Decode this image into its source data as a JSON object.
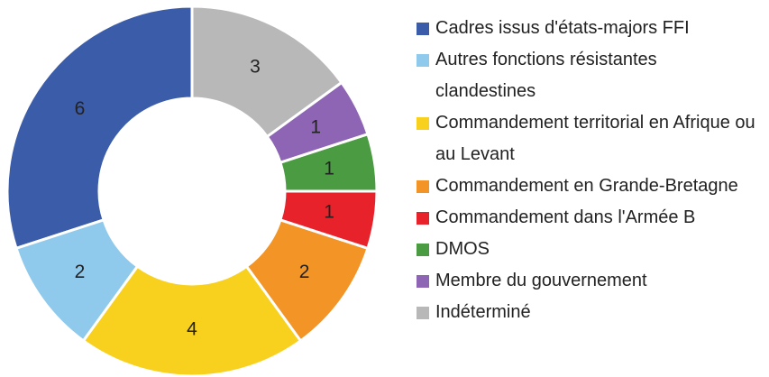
{
  "chart_data": {
    "type": "donut",
    "categories": [
      "Cadres issus d'états-majors FFI",
      "Autres fonctions résistantes clandestines",
      "Commandement territorial en Afrique ou au Levant",
      "Commandement en Grande-Bretagne",
      "Commandement dans l'Armée B",
      "DMOS",
      "Membre du gouvernement",
      "Indéterminé"
    ],
    "values": [
      6,
      2,
      4,
      2,
      1,
      1,
      1,
      3
    ],
    "colors": [
      "#3b5ca9",
      "#8fc9ec",
      "#f8d11f",
      "#f29426",
      "#e8222b",
      "#4b9b43",
      "#8e64b5",
      "#b8b8b8"
    ],
    "legend": "right"
  }
}
